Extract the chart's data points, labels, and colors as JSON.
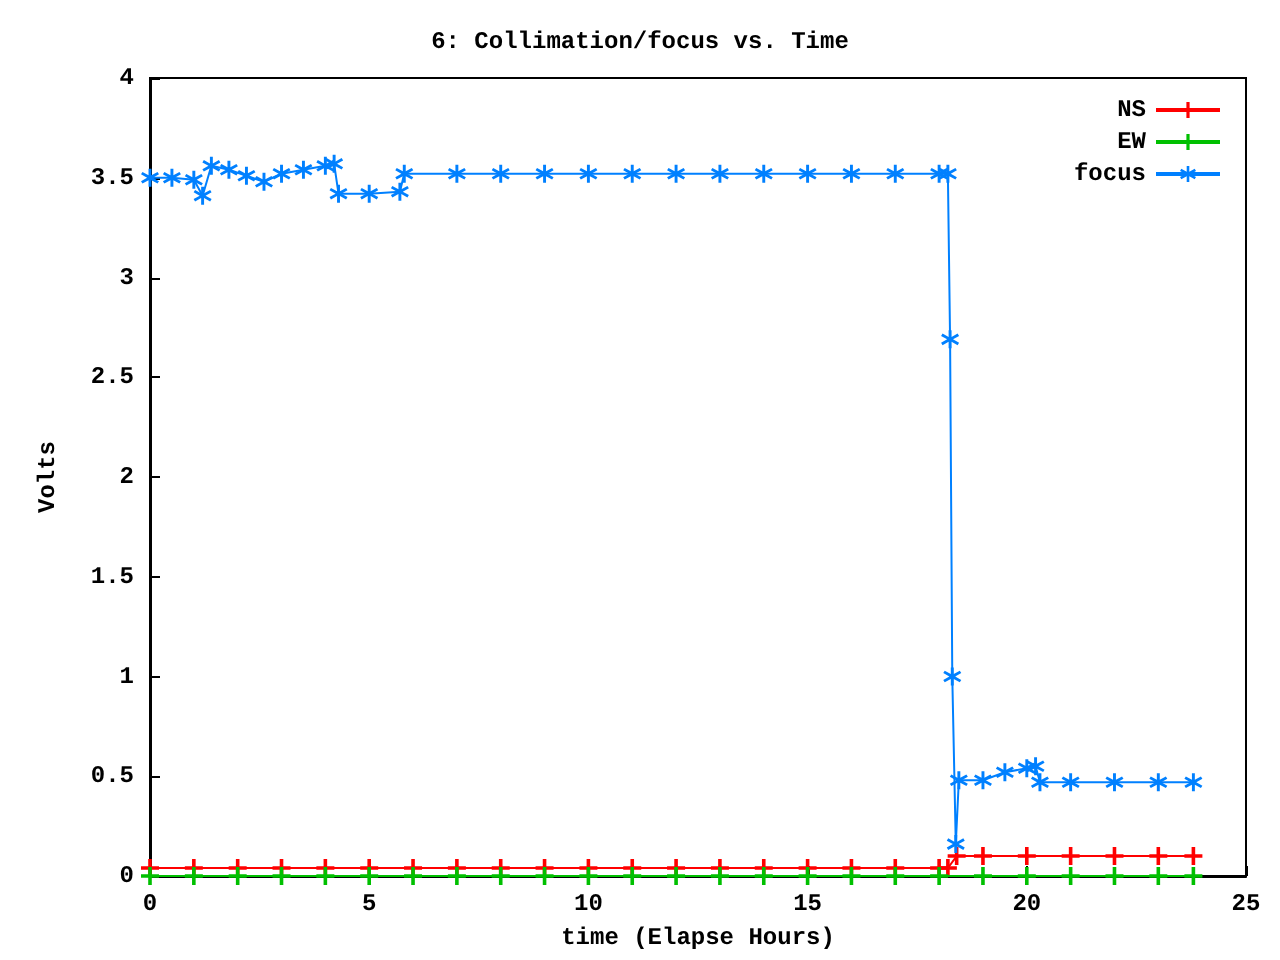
{
  "chart_data": {
    "type": "line",
    "title": "6: Collimation/focus vs. Time",
    "xlabel": "time (Elapse Hours)",
    "ylabel": "Volts",
    "xlim": [
      0,
      25
    ],
    "xticks": [
      0,
      5,
      10,
      15,
      20,
      25
    ],
    "ylim": [
      0,
      4
    ],
    "yticks": [
      0,
      0.5,
      1,
      1.5,
      2,
      2.5,
      3,
      3.5,
      4
    ],
    "grid": false,
    "legend": "top right",
    "line_style": "solid",
    "series": [
      {
        "name": "NS",
        "color": "#ff0000",
        "marker": "cross",
        "x": [
          0,
          1,
          2,
          3,
          4,
          5,
          6,
          7,
          8,
          9,
          10,
          11,
          12,
          13,
          14,
          15,
          16,
          17,
          18,
          18.2,
          18.4,
          19,
          20,
          21,
          22,
          23,
          23.8
        ],
        "values": [
          0.04,
          0.04,
          0.04,
          0.04,
          0.04,
          0.04,
          0.04,
          0.04,
          0.04,
          0.04,
          0.04,
          0.04,
          0.04,
          0.04,
          0.04,
          0.04,
          0.04,
          0.04,
          0.04,
          0.04,
          0.1,
          0.1,
          0.1,
          0.1,
          0.1,
          0.1,
          0.1
        ]
      },
      {
        "name": "EW",
        "color": "#00c000",
        "marker": "cross",
        "x": [
          0,
          1,
          2,
          3,
          4,
          5,
          6,
          7,
          8,
          9,
          10,
          11,
          12,
          13,
          14,
          15,
          16,
          17,
          18,
          19,
          20,
          21,
          22,
          23,
          23.8
        ],
        "values": [
          0,
          0,
          0,
          0,
          0,
          0,
          0,
          0,
          0,
          0,
          0,
          0,
          0,
          0,
          0,
          0,
          0,
          0,
          0,
          0,
          0,
          0,
          0,
          0,
          0
        ]
      },
      {
        "name": "focus",
        "color": "#0080ff",
        "marker": "star",
        "x": [
          0,
          0.5,
          1,
          1.2,
          1.4,
          1.8,
          2.2,
          2.6,
          3,
          3.5,
          4,
          4.2,
          4.3,
          5,
          5.7,
          5.8,
          7,
          8,
          9,
          10,
          11,
          12,
          13,
          14,
          15,
          16,
          17,
          18,
          18.2,
          18.25,
          18.3,
          18.38,
          18.45,
          19,
          19.5,
          20,
          20.2,
          20.3,
          21,
          22,
          23,
          23.8
        ],
        "values": [
          3.5,
          3.5,
          3.49,
          3.41,
          3.56,
          3.54,
          3.51,
          3.48,
          3.52,
          3.54,
          3.56,
          3.57,
          3.42,
          3.42,
          3.43,
          3.52,
          3.52,
          3.52,
          3.52,
          3.52,
          3.52,
          3.52,
          3.52,
          3.52,
          3.52,
          3.52,
          3.52,
          3.52,
          3.52,
          2.69,
          1.0,
          0.16,
          0.48,
          0.48,
          0.52,
          0.54,
          0.55,
          0.47,
          0.47,
          0.47,
          0.47,
          0.47
        ]
      }
    ]
  }
}
